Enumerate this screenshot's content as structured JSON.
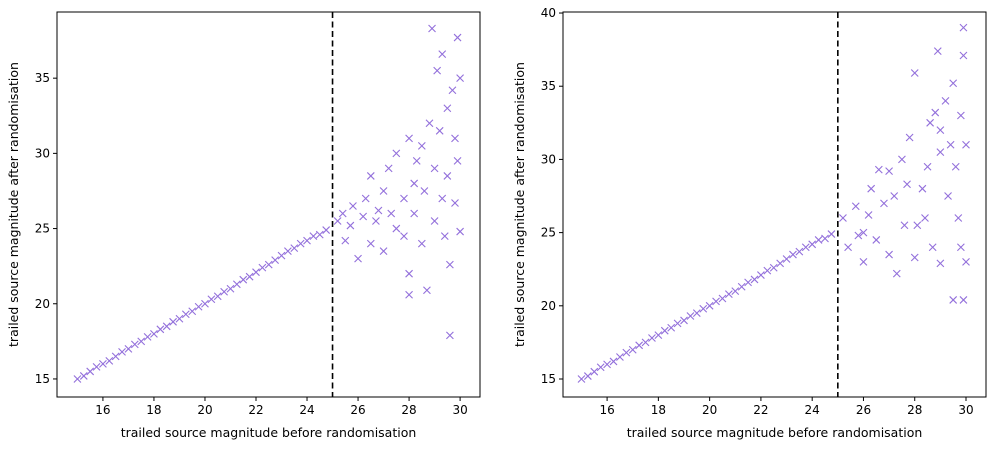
{
  "chart_data": [
    {
      "type": "scatter",
      "x_label": "trailed source magnitude before randomisation",
      "y_label": "trailed source magnitude after randomisation",
      "color": "#9370db",
      "marker": "x",
      "vline": 25,
      "xlim": [
        14.2,
        30.78
      ],
      "ylim": [
        13.8,
        39.4
      ],
      "xticks": [
        16,
        18,
        20,
        22,
        24,
        26,
        28,
        30
      ],
      "yticks": [
        15,
        20,
        25,
        30,
        35
      ],
      "x": [
        15,
        15.25,
        15.5,
        15.75,
        16,
        16.25,
        16.5,
        16.75,
        17,
        17.25,
        17.5,
        17.75,
        18,
        18.25,
        18.5,
        18.75,
        19,
        19.25,
        19.5,
        19.75,
        20,
        20.25,
        20.5,
        20.75,
        21,
        21.25,
        21.5,
        21.75,
        22,
        22.25,
        22.5,
        22.75,
        23,
        23.25,
        23.5,
        23.75,
        24,
        24.25,
        24.5,
        24.75,
        25.2,
        25.5,
        25.8,
        26,
        26.2,
        26.5,
        26.5,
        26.8,
        27,
        27,
        27.2,
        27.5,
        27.5,
        27.8,
        28,
        28,
        28,
        28.2,
        28.3,
        28.5,
        28.5,
        28.6,
        28.7,
        28.8,
        28.9,
        29,
        29,
        29.1,
        29.2,
        29.3,
        29.4,
        29.5,
        29.5,
        29.6,
        29.6,
        29.7,
        29.8,
        29.8,
        29.9,
        30,
        30,
        29.9,
        26.3,
        25.7,
        25.4,
        26.7,
        27.3,
        27.8,
        28.2,
        29.3
      ],
      "values": [
        15,
        15.2,
        15.5,
        15.8,
        16,
        16.2,
        16.5,
        16.8,
        17,
        17.3,
        17.5,
        17.8,
        18,
        18.3,
        18.5,
        18.8,
        19,
        19.3,
        19.5,
        19.8,
        20,
        20.3,
        20.5,
        20.8,
        21,
        21.3,
        21.6,
        21.8,
        22.1,
        22.4,
        22.6,
        22.9,
        23.2,
        23.5,
        23.7,
        24,
        24.2,
        24.5,
        24.6,
        24.9,
        25.5,
        24.2,
        26.5,
        23,
        25.8,
        28.5,
        24,
        26.2,
        27.5,
        23.5,
        29,
        25,
        30,
        27,
        22,
        20.6,
        31,
        26,
        29.5,
        24,
        30.5,
        27.5,
        20.9,
        32,
        38.3,
        25.5,
        29,
        35.5,
        31.5,
        36.6,
        24.5,
        33,
        28.5,
        22.6,
        17.9,
        34.2,
        26.7,
        31,
        37.7,
        35,
        24.8,
        29.5,
        27,
        25.2,
        26,
        25.5,
        26,
        24.5,
        28,
        27
      ]
    },
    {
      "type": "scatter",
      "x_label": "trailed source magnitude before randomisation",
      "y_label": "trailed source magnitude after randomisation",
      "color": "#9370db",
      "marker": "x",
      "vline": 25,
      "xlim": [
        14.28,
        30.78
      ],
      "ylim": [
        13.77,
        40.07
      ],
      "xticks": [
        16,
        18,
        20,
        22,
        24,
        26,
        28,
        30
      ],
      "yticks": [
        15,
        20,
        25,
        30,
        35,
        40
      ],
      "x": [
        15,
        15.25,
        15.5,
        15.75,
        16,
        16.25,
        16.5,
        16.75,
        17,
        17.25,
        17.5,
        17.75,
        18,
        18.25,
        18.5,
        18.75,
        19,
        19.25,
        19.5,
        19.75,
        20,
        20.25,
        20.5,
        20.75,
        21,
        21.25,
        21.5,
        21.75,
        22,
        22.25,
        22.5,
        22.75,
        23,
        23.25,
        23.5,
        23.75,
        24,
        24.25,
        24.5,
        24.75,
        25.2,
        25.4,
        25.7,
        26,
        26,
        26.3,
        26.5,
        26.8,
        27,
        27,
        27.3,
        27.5,
        27.6,
        27.8,
        28,
        28,
        28.3,
        28.4,
        28.6,
        28.7,
        28.9,
        29,
        29,
        29.2,
        29.3,
        29.5,
        29.5,
        29.6,
        29.7,
        29.8,
        29.9,
        29.9,
        30,
        30,
        29.8,
        28.5,
        27.2,
        26.2,
        25.8,
        27.7,
        28.8,
        29.4,
        26.6,
        29.9,
        28.1,
        29
      ],
      "values": [
        15,
        15.2,
        15.5,
        15.8,
        16,
        16.2,
        16.5,
        16.8,
        17,
        17.3,
        17.5,
        17.8,
        18,
        18.3,
        18.5,
        18.8,
        19,
        19.3,
        19.5,
        19.8,
        20,
        20.3,
        20.5,
        20.8,
        21,
        21.3,
        21.6,
        21.8,
        22.1,
        22.4,
        22.6,
        22.9,
        23.2,
        23.5,
        23.7,
        24,
        24.2,
        24.5,
        24.6,
        24.9,
        26,
        24,
        26.8,
        25,
        23,
        28,
        24.5,
        27,
        29.2,
        23.5,
        22.2,
        30,
        25.5,
        31.5,
        35.9,
        23.3,
        28,
        26,
        32.5,
        24,
        37.4,
        30.5,
        22.9,
        34,
        27.5,
        35.2,
        20.4,
        29.5,
        26,
        33,
        39,
        20.4,
        23,
        31,
        24,
        29.5,
        27.5,
        26.2,
        24.8,
        28.3,
        33.2,
        31,
        29.3,
        37.1,
        25.5,
        32
      ]
    }
  ]
}
